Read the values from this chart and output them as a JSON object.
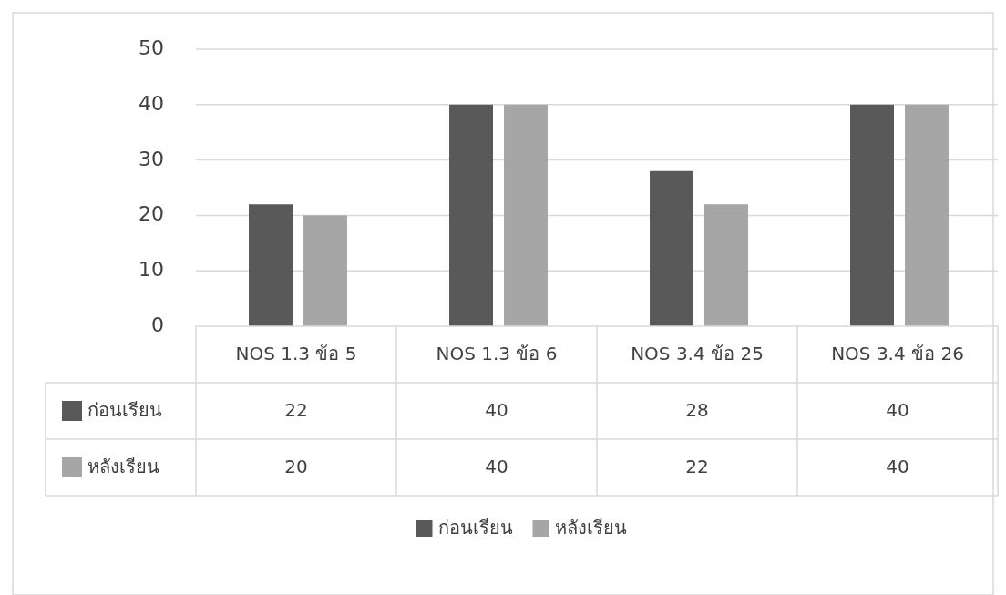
{
  "chart_data": {
    "type": "bar",
    "categories": [
      "NOS 1.3 ข้อ 5",
      "NOS 1.3 ข้อ 6",
      "NOS 3.4 ข้อ 25",
      "NOS 3.4 ข้อ 26"
    ],
    "series": [
      {
        "name": "ก่อนเรียน",
        "color": "#595959",
        "values": [
          22,
          40,
          28,
          40
        ]
      },
      {
        "name": "หลังเรียน",
        "color": "#a6a6a6",
        "values": [
          20,
          40,
          22,
          40
        ]
      }
    ],
    "ylim": [
      0,
      50
    ],
    "yticks": [
      0,
      10,
      20,
      30,
      40,
      50
    ],
    "grid": "y",
    "legend": "bottom",
    "data_labels": true
  }
}
